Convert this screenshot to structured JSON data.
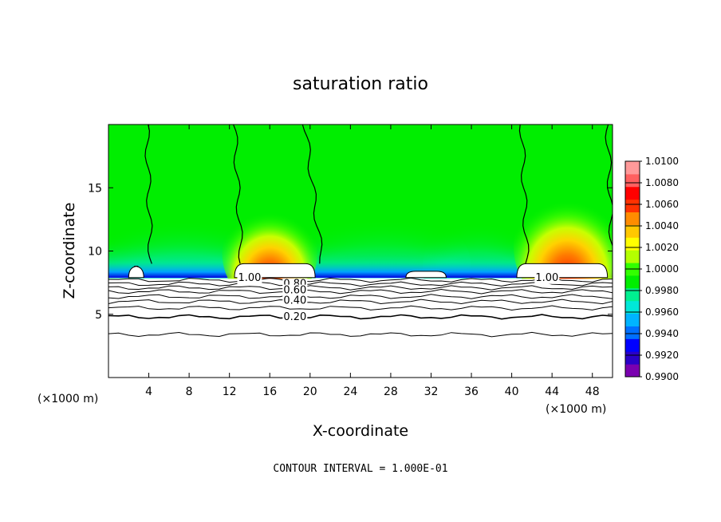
{
  "chart_data": {
    "type": "heatmap",
    "title": "saturation ratio",
    "xlabel": "X-coordinate",
    "ylabel": "Z-coordinate",
    "x_unit_left": "(×1000 m)",
    "x_unit_right": "(×1000 m)",
    "footer": "CONTOUR INTERVAL = 1.000E-01",
    "xlim": [
      0,
      50
    ],
    "ylim": [
      0,
      20
    ],
    "x_ticks": [
      4,
      8,
      12,
      16,
      20,
      24,
      28,
      32,
      36,
      40,
      44,
      48
    ],
    "y_ticks": [
      5,
      10,
      15
    ],
    "colorbar": {
      "levels": [
        "1.0100",
        "1.0080",
        "1.0060",
        "1.0040",
        "1.0020",
        "1.0000",
        "0.9980",
        "0.9960",
        "0.9940",
        "0.9920",
        "0.9900"
      ],
      "min": 0.99,
      "max": 1.01,
      "colors": [
        "#7a00b0",
        "#2a00c8",
        "#0000ff",
        "#0070ff",
        "#00b4ff",
        "#00e8d8",
        "#00f090",
        "#00ee00",
        "#33ff00",
        "#b4ff00",
        "#ffff00",
        "#ffc800",
        "#ff8c00",
        "#ff3200",
        "#ff0000",
        "#ff6060",
        "#ff9a9a"
      ]
    },
    "contour_labels": [
      {
        "text": "1.00",
        "x": 14.0,
        "z": 7.9
      },
      {
        "text": "0.80",
        "x": 18.5,
        "z": 7.4
      },
      {
        "text": "0.60",
        "x": 18.5,
        "z": 6.9
      },
      {
        "text": "0.40",
        "x": 18.5,
        "z": 6.1
      },
      {
        "text": "0.20",
        "x": 18.5,
        "z": 4.8
      },
      {
        "text": "1.00",
        "x": 43.5,
        "z": 7.9
      }
    ],
    "clouds": [
      {
        "x_start": 12.5,
        "x_end": 20.5,
        "z_top": 9.0
      },
      {
        "x_start": 40.5,
        "x_end": 49.5,
        "z_top": 9.0
      },
      {
        "x_start": 2.0,
        "x_end": 3.5,
        "z_top": 8.8
      },
      {
        "x_start": 29.5,
        "x_end": 33.5,
        "z_top": 8.4
      }
    ],
    "supersaturation_maxima": [
      {
        "x": 16.0,
        "z": 10.5,
        "value": 1.008
      },
      {
        "x": 45.5,
        "z": 11.0,
        "value": 1.009
      }
    ]
  }
}
